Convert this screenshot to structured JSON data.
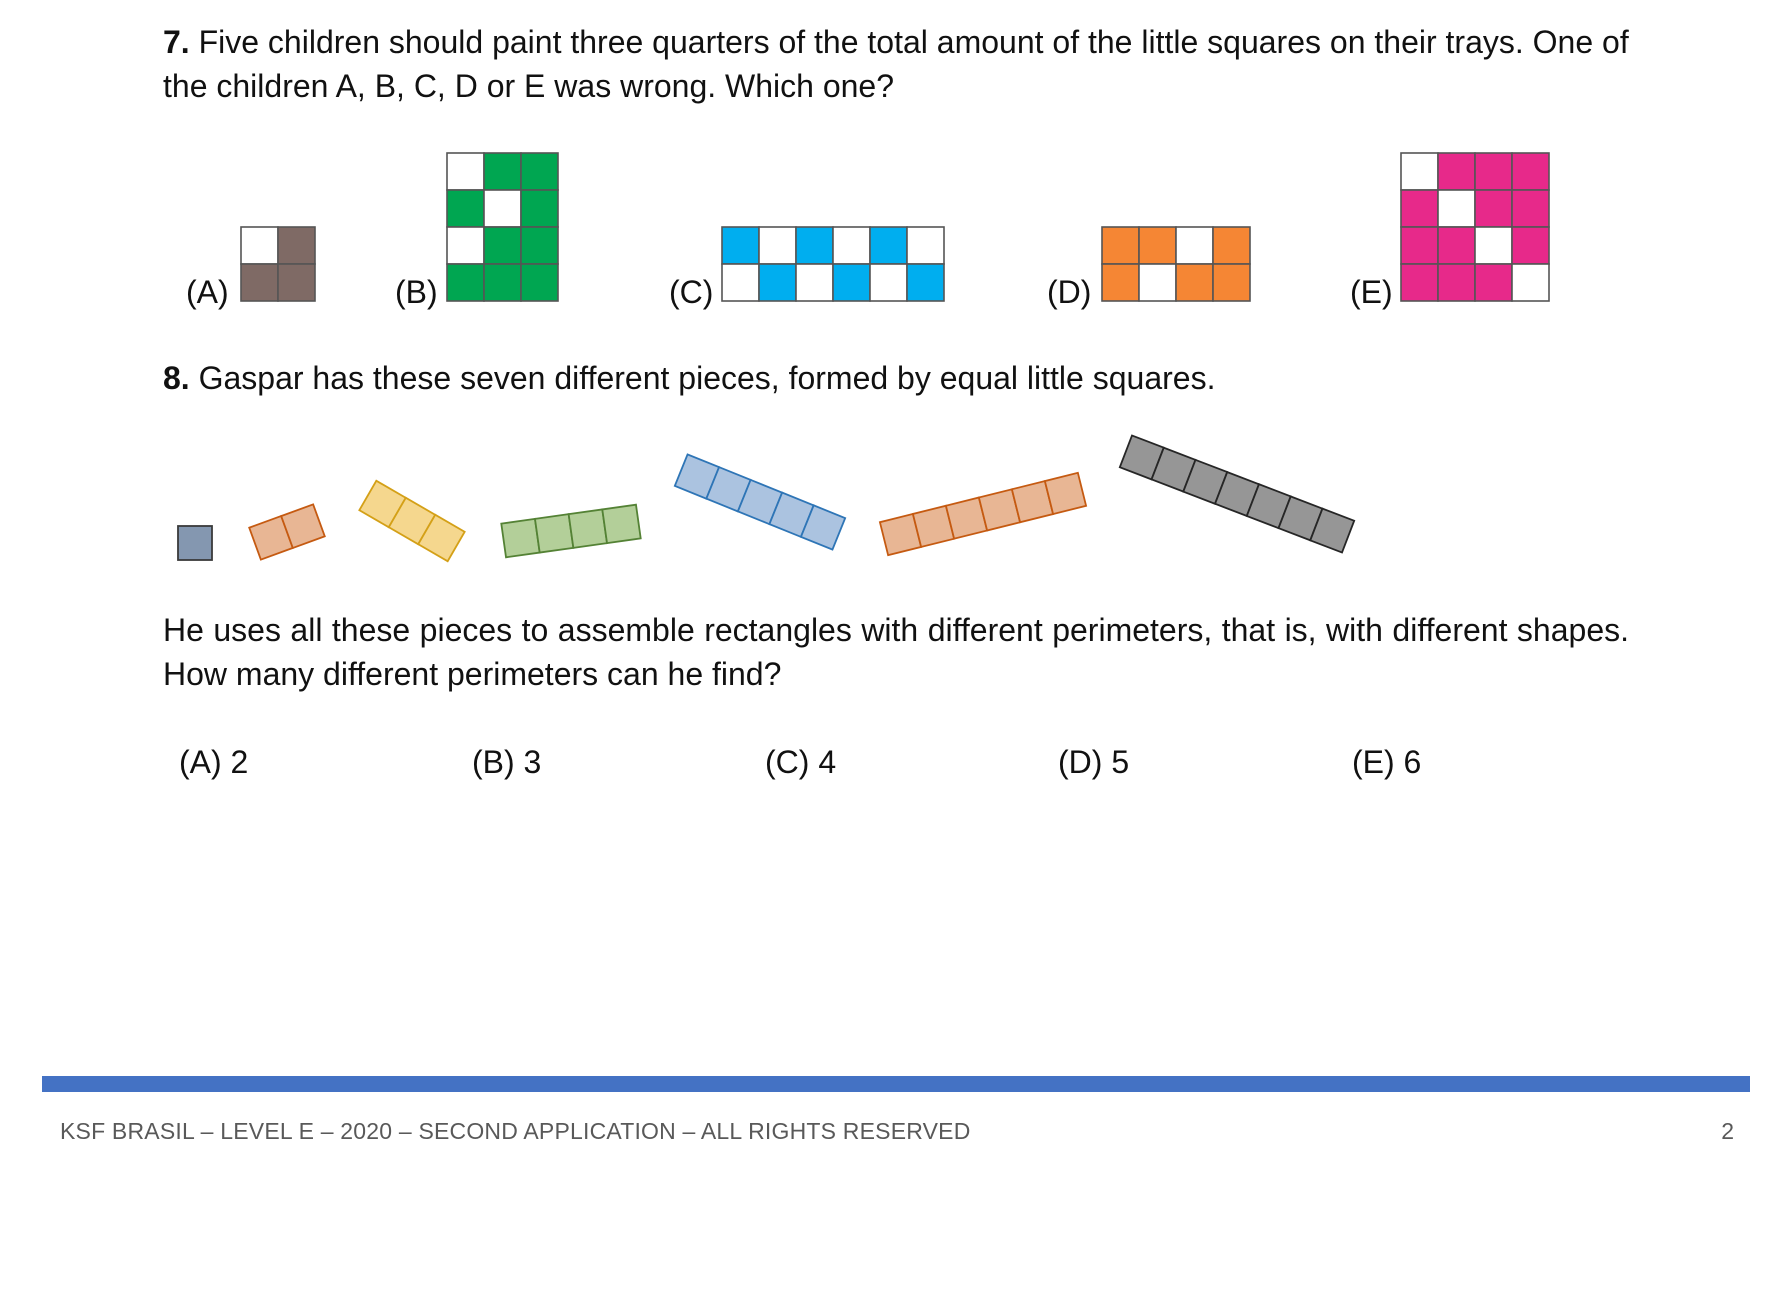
{
  "q7": {
    "number": "7.",
    "text": " Five children should paint three quarters of the total amount of the little squares on their trays. One of the children A, B, C, D or E was wrong. Which one?",
    "trays": [
      {
        "label": "(A)",
        "color": "#7f6a65",
        "rows": 2,
        "cols": 2,
        "white": [
          [
            0,
            0
          ]
        ]
      },
      {
        "label": "(B)",
        "color": "#00a651",
        "rows": 4,
        "cols": 3,
        "white": [
          [
            0,
            0
          ],
          [
            1,
            1
          ],
          [
            2,
            0
          ]
        ]
      },
      {
        "label": "(C)",
        "color": "#00aeef",
        "rows": 2,
        "cols": 6,
        "white": [
          [
            0,
            1
          ],
          [
            0,
            3
          ],
          [
            0,
            5
          ],
          [
            1,
            0
          ],
          [
            1,
            2
          ],
          [
            1,
            4
          ]
        ]
      },
      {
        "label": "(D)",
        "color": "#f58634",
        "rows": 2,
        "cols": 4,
        "white": [
          [
            0,
            2
          ],
          [
            1,
            1
          ]
        ]
      },
      {
        "label": "(E)",
        "color": "#e7298a",
        "rows": 4,
        "cols": 4,
        "white": [
          [
            0,
            0
          ],
          [
            1,
            1
          ],
          [
            2,
            2
          ],
          [
            3,
            3
          ]
        ]
      }
    ]
  },
  "q8": {
    "number": "8.",
    "text": " Gaspar has these seven different pieces, formed by equal little squares.",
    "pieces": [
      {
        "squares": 1,
        "fill": "#8497b0",
        "stroke": "#3a3a3a"
      },
      {
        "squares": 2,
        "fill": "#e8b694",
        "stroke": "#c55a11"
      },
      {
        "squares": 3,
        "fill": "#f5d78e",
        "stroke": "#d4a017"
      },
      {
        "squares": 4,
        "fill": "#b3cf99",
        "stroke": "#548235"
      },
      {
        "squares": 5,
        "fill": "#abc3e0",
        "stroke": "#2e75b6"
      },
      {
        "squares": 6,
        "fill": "#e8b694",
        "stroke": "#c55a11"
      },
      {
        "squares": 7,
        "fill": "#969696",
        "stroke": "#262626"
      }
    ],
    "question": "He uses all these pieces to assemble rectangles with different perimeters, that is, with different shapes. How many different perimeters can he find?",
    "answers": [
      "(A) 2",
      "(B) 3",
      "(C) 4",
      "(D) 5",
      "(E) 6"
    ]
  },
  "footer": {
    "text": "KSF BRASIL – LEVEL E – 2020 – SECOND APPLICATION – ALL RIGHTS RESERVED",
    "page": "2",
    "rule_color": "#4472c4"
  }
}
